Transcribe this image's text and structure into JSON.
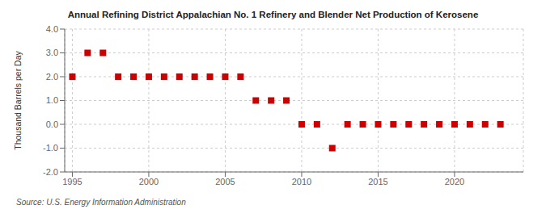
{
  "chart_data": {
    "type": "scatter",
    "title": "Annual Refining District Appalachian No. 1 Refinery and Blender Net Production of Kerosene",
    "ylabel": "Thousand Barrels per Day",
    "annotations": [
      "Source: U.S. Energy Information Administration"
    ],
    "x": [
      1995,
      1996,
      1997,
      1998,
      1999,
      2000,
      2001,
      2002,
      2003,
      2004,
      2005,
      2006,
      2007,
      2008,
      2009,
      2010,
      2011,
      2012,
      2013,
      2014,
      2015,
      2016,
      2017,
      2018,
      2019,
      2020,
      2021,
      2022,
      2023
    ],
    "values": [
      2.0,
      3.0,
      3.0,
      2.0,
      2.0,
      2.0,
      2.0,
      2.0,
      2.0,
      2.0,
      2.0,
      2.0,
      1.0,
      1.0,
      1.0,
      0.0,
      0.0,
      -1.0,
      0.0,
      0.0,
      0.0,
      0.0,
      0.0,
      0.0,
      0.0,
      0.0,
      0.0,
      0.0,
      0.0
    ],
    "color": "#cc0000",
    "marker": "square",
    "xlim": [
      1994.5,
      2024.5
    ],
    "xticks": [
      1995,
      2000,
      2005,
      2010,
      2015,
      2020
    ],
    "ylim": [
      -2.0,
      4.0
    ],
    "yticks": [
      {
        "value": -2.0,
        "label": "-2.0"
      },
      {
        "value": -1.0,
        "label": "-1.0"
      },
      {
        "value": 0.0,
        "label": "0.0"
      },
      {
        "value": 1.0,
        "label": "1.0"
      },
      {
        "value": 2.0,
        "label": "2.0"
      },
      {
        "value": 3.0,
        "label": "3.0"
      },
      {
        "value": 4.0,
        "label": "4.0"
      }
    ],
    "grid": true
  }
}
